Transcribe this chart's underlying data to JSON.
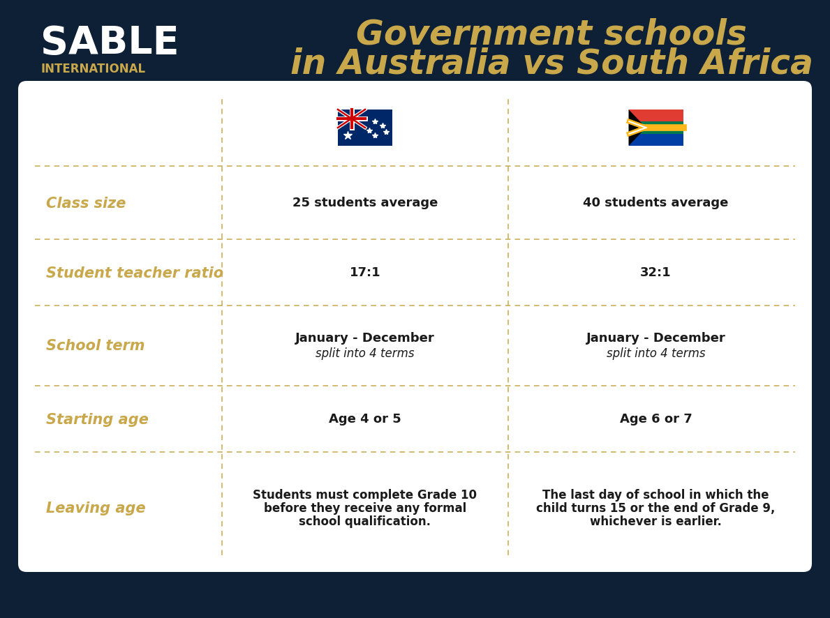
{
  "bg_color": "#0d2035",
  "table_bg": "#ffffff",
  "title_line1": "Government schools",
  "title_line2": "in Australia vs South Africa",
  "title_color": "#c9a84c",
  "sable_color": "#ffffff",
  "international_color": "#c9a84c",
  "row_label_color": "#c9a84c",
  "cell_text_color": "#1a1a1a",
  "dashed_line_color": "#c9a84c",
  "row_labels": [
    "Class size",
    "Student teacher ratio",
    "School term",
    "Starting age",
    "Leaving age"
  ],
  "australia_col_0": "25 students average",
  "australia_col_1": "17:1",
  "australia_col_2a": "January - December",
  "australia_col_2b": "split into 4 terms",
  "australia_col_3": "Age 4 or 5",
  "australia_col_4a": "Students must complete Grade 10",
  "australia_col_4b": "before they receive any formal",
  "australia_col_4c": "school qualification.",
  "sa_col_0": "40 students average",
  "sa_col_1": "32:1",
  "sa_col_2a": "January - December",
  "sa_col_2b": "split into 4 terms",
  "sa_col_3": "Age 6 or 7",
  "sa_col_4a": "The last day of school in which the",
  "sa_col_4b": "child turns 15 or the end of Grade 9,",
  "sa_col_4c": "whichever is earlier."
}
